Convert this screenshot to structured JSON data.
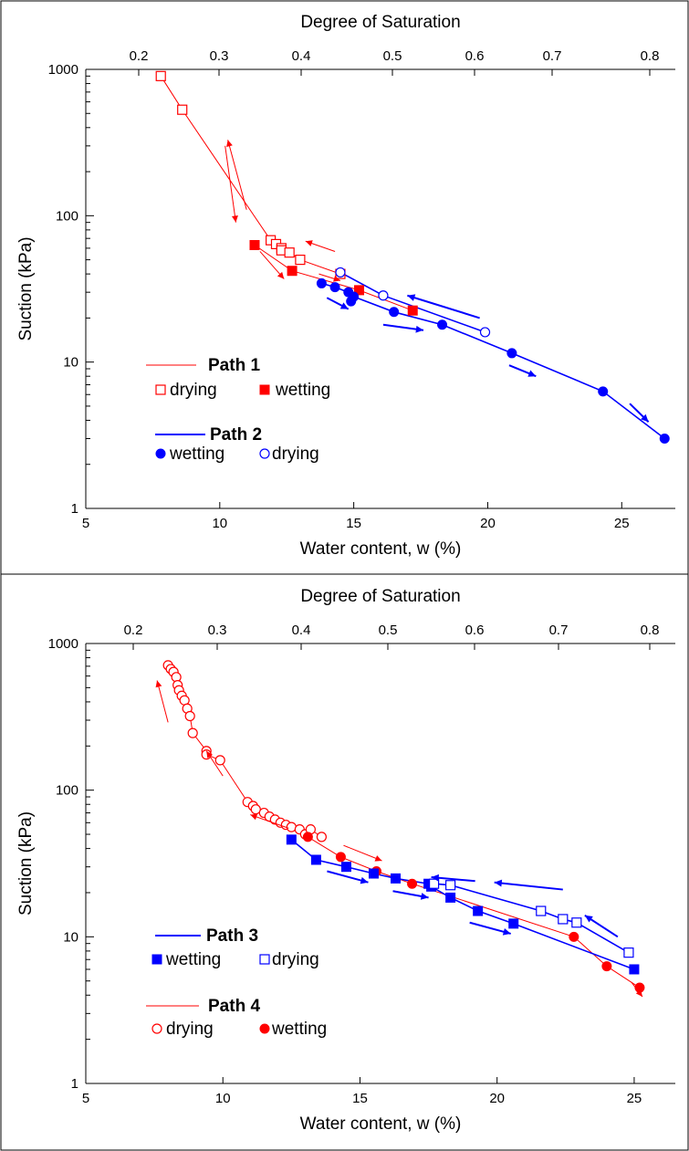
{
  "chart_data": [
    {
      "type": "scatter",
      "xlabel": "Water content, w (%)",
      "ylabel": "Suction (kPa)",
      "x2label": "Degree of Saturation",
      "xlim": [
        5,
        27
      ],
      "ylim": [
        1,
        1000
      ],
      "yscale": "log",
      "xticks": [
        5,
        10,
        15,
        20,
        25
      ],
      "yticks": [
        1,
        10,
        100,
        1000
      ],
      "x2ticks": [
        "0.2",
        "0.3",
        "0.4",
        "0.5",
        "0.6",
        "0.7",
        "0.8"
      ],
      "legend": [
        {
          "title": "Path 1",
          "color": "#ff0000",
          "entries": [
            "drying",
            "wetting"
          ],
          "markers": [
            "open-square",
            "filled-square"
          ]
        },
        {
          "title": "Path 2",
          "color": "#0000ff",
          "entries": [
            "wetting",
            "drying"
          ],
          "markers": [
            "filled-circle",
            "open-circle"
          ]
        }
      ],
      "series": [
        {
          "color": "#ff0000",
          "marker": "open-square",
          "line": true,
          "points": [
            [
              7.8,
              900
            ],
            [
              8.6,
              530
            ],
            [
              11.9,
              68
            ],
            [
              12.1,
              64
            ],
            [
              12.3,
              60
            ],
            [
              12.3,
              58
            ],
            [
              12.6,
              56
            ],
            [
              13.0,
              50
            ],
            [
              14.5,
              40
            ]
          ]
        },
        {
          "color": "#ff0000",
          "marker": "filled-square",
          "line": true,
          "points": [
            [
              11.3,
              63
            ],
            [
              12.7,
              42
            ],
            [
              15.2,
              31
            ],
            [
              17.2,
              22.5
            ]
          ]
        },
        {
          "color": "#0000ff",
          "marker": "filled-circle",
          "line": true,
          "points": [
            [
              13.8,
              34.5
            ],
            [
              14.3,
              32.5
            ],
            [
              14.8,
              30
            ],
            [
              14.9,
              26
            ],
            [
              15.0,
              28
            ],
            [
              16.5,
              22
            ],
            [
              18.3,
              18
            ],
            [
              20.9,
              11.5
            ],
            [
              24.3,
              6.3
            ],
            [
              26.6,
              3.0
            ]
          ]
        },
        {
          "color": "#0000ff",
          "marker": "open-circle",
          "line": true,
          "points": [
            [
              14.5,
              41
            ],
            [
              16.1,
              28.5
            ],
            [
              19.9,
              16
            ]
          ]
        }
      ],
      "arrows": [
        {
          "color": "#ff0000",
          "from": [
            10.2,
            300
          ],
          "to": [
            10.6,
            90
          ]
        },
        {
          "color": "#ff0000",
          "from": [
            11.0,
            110
          ],
          "to": [
            10.3,
            330
          ]
        },
        {
          "color": "#ff0000",
          "from": [
            11.5,
            57
          ],
          "to": [
            12.4,
            37
          ]
        },
        {
          "color": "#ff0000",
          "from": [
            14.3,
            57
          ],
          "to": [
            13.2,
            67
          ]
        },
        {
          "color": "#ff0000",
          "from": [
            13.7,
            40
          ],
          "to": [
            14.5,
            36
          ]
        },
        {
          "color": "#0000ff",
          "from": [
            14.0,
            27.5
          ],
          "to": [
            14.8,
            23
          ]
        },
        {
          "color": "#0000ff",
          "from": [
            16.1,
            18
          ],
          "to": [
            17.6,
            16.5
          ]
        },
        {
          "color": "#0000ff",
          "from": [
            19.7,
            20
          ],
          "to": [
            17.0,
            28.5
          ]
        },
        {
          "color": "#0000ff",
          "from": [
            20.8,
            9.5
          ],
          "to": [
            21.8,
            8.0
          ]
        },
        {
          "color": "#0000ff",
          "from": [
            25.3,
            5.2
          ],
          "to": [
            26.0,
            3.9
          ]
        }
      ]
    },
    {
      "type": "scatter",
      "xlabel": "Water content, w (%)",
      "ylabel": "Suction (kPa)",
      "x2label": "Degree of Saturation",
      "xlim": [
        5,
        26.5
      ],
      "ylim": [
        1,
        1000
      ],
      "yscale": "log",
      "xticks": [
        5,
        10,
        15,
        20,
        25
      ],
      "yticks": [
        1,
        10,
        100,
        1000
      ],
      "x2ticks": [
        "0.2",
        "0.3",
        "0.4",
        "0.5",
        "0.6",
        "0.7",
        "0.8"
      ],
      "legend": [
        {
          "title": "Path 3",
          "color": "#0000ff",
          "entries": [
            "wetting",
            "drying"
          ],
          "markers": [
            "filled-square",
            "open-square"
          ]
        },
        {
          "title": "Path 4",
          "color": "#ff0000",
          "entries": [
            "drying",
            "wetting"
          ],
          "markers": [
            "open-circle",
            "filled-circle"
          ]
        }
      ],
      "series": [
        {
          "color": "#ff0000",
          "marker": "open-circle",
          "line": true,
          "points": [
            [
              8.0,
              710
            ],
            [
              8.1,
              670
            ],
            [
              8.2,
              640
            ],
            [
              8.3,
              590
            ],
            [
              8.35,
              520
            ],
            [
              8.4,
              480
            ],
            [
              8.5,
              440
            ],
            [
              8.6,
              410
            ],
            [
              8.7,
              360
            ],
            [
              8.8,
              320
            ],
            [
              8.9,
              245
            ],
            [
              9.4,
              185
            ],
            [
              9.4,
              175
            ],
            [
              9.9,
              160
            ],
            [
              10.9,
              83
            ],
            [
              11.1,
              78
            ],
            [
              11.2,
              74
            ],
            [
              11.5,
              70
            ],
            [
              11.7,
              66
            ],
            [
              11.9,
              63
            ],
            [
              12.1,
              60
            ],
            [
              12.3,
              58
            ],
            [
              12.5,
              56
            ],
            [
              12.8,
              54
            ],
            [
              13.0,
              50
            ],
            [
              13.2,
              54
            ],
            [
              13.6,
              48
            ]
          ]
        },
        {
          "color": "#ff0000",
          "marker": "filled-circle",
          "line": true,
          "points": [
            [
              13.1,
              48
            ],
            [
              14.3,
              35
            ],
            [
              15.6,
              28
            ],
            [
              16.9,
              23
            ],
            [
              22.8,
              10
            ],
            [
              24.0,
              6.3
            ],
            [
              25.2,
              4.5
            ]
          ]
        },
        {
          "color": "#0000ff",
          "marker": "filled-square",
          "line": true,
          "points": [
            [
              12.5,
              46
            ],
            [
              13.4,
              33.5
            ],
            [
              14.5,
              30
            ],
            [
              15.5,
              27
            ],
            [
              16.3,
              25
            ],
            [
              17.5,
              23
            ],
            [
              17.6,
              22
            ],
            [
              18.3,
              18.5
            ],
            [
              19.3,
              15
            ],
            [
              20.6,
              12.3
            ],
            [
              25.0,
              6.0
            ]
          ]
        },
        {
          "color": "#0000ff",
          "marker": "open-square",
          "line": true,
          "points": [
            [
              17.7,
              23
            ],
            [
              18.3,
              22.5
            ],
            [
              21.6,
              15
            ],
            [
              22.4,
              13.2
            ],
            [
              22.9,
              12.5
            ],
            [
              24.8,
              7.8
            ]
          ]
        }
      ],
      "arrows": [
        {
          "color": "#ff0000",
          "from": [
            8.0,
            290
          ],
          "to": [
            7.6,
            560
          ]
        },
        {
          "color": "#ff0000",
          "from": [
            10.0,
            125
          ],
          "to": [
            9.4,
            185
          ]
        },
        {
          "color": "#ff0000",
          "from": [
            12.4,
            55
          ],
          "to": [
            11.0,
            68
          ]
        },
        {
          "color": "#ff0000",
          "from": [
            14.4,
            42
          ],
          "to": [
            15.8,
            33
          ]
        },
        {
          "color": "#ff0000",
          "from": [
            24.9,
            4.9
          ],
          "to": [
            25.3,
            3.9
          ]
        },
        {
          "color": "#0000ff",
          "from": [
            13.8,
            28
          ],
          "to": [
            15.3,
            23.5
          ]
        },
        {
          "color": "#0000ff",
          "from": [
            16.2,
            20.5
          ],
          "to": [
            17.5,
            18.5
          ]
        },
        {
          "color": "#0000ff",
          "from": [
            19.2,
            24
          ],
          "to": [
            17.6,
            25.5
          ]
        },
        {
          "color": "#0000ff",
          "from": [
            19.0,
            12.5
          ],
          "to": [
            20.5,
            10.5
          ]
        },
        {
          "color": "#0000ff",
          "from": [
            22.4,
            21
          ],
          "to": [
            19.9,
            23.5
          ]
        },
        {
          "color": "#0000ff",
          "from": [
            24.4,
            10
          ],
          "to": [
            23.2,
            14
          ]
        }
      ]
    }
  ]
}
